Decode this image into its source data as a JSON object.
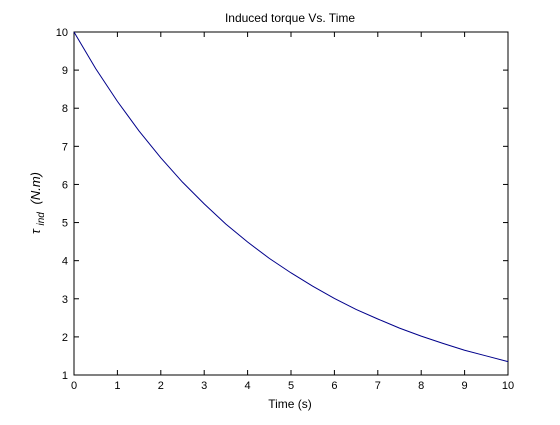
{
  "chart_data": {
    "type": "line",
    "title": "Induced torque Vs. Time",
    "xlabel": "Time (s)",
    "ylabel": {
      "symbol": "τ",
      "subscript": "ind",
      "unit": "(N.m)"
    },
    "xlim": [
      0,
      10
    ],
    "ylim": [
      1,
      10
    ],
    "xticks": [
      0,
      1,
      2,
      3,
      4,
      5,
      6,
      7,
      8,
      9,
      10
    ],
    "yticks": [
      1,
      2,
      3,
      4,
      5,
      6,
      7,
      8,
      9,
      10
    ],
    "grid": false,
    "series": [
      {
        "color": "#00008b",
        "x": [
          0,
          0.5,
          1,
          1.5,
          2,
          2.5,
          3,
          3.5,
          4,
          4.5,
          5,
          5.5,
          6,
          6.5,
          7,
          7.5,
          8,
          8.5,
          9,
          9.5,
          10
        ],
        "y": [
          10.0,
          9.04,
          8.18,
          7.4,
          6.7,
          6.06,
          5.49,
          4.96,
          4.49,
          4.06,
          3.68,
          3.33,
          3.01,
          2.72,
          2.47,
          2.23,
          2.02,
          1.83,
          1.65,
          1.5,
          1.35
        ]
      }
    ]
  }
}
